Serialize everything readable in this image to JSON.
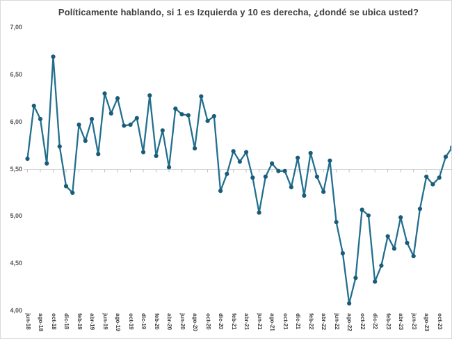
{
  "title": "Políticamente hablando, si 1 es Izquierda y 10 es derecha, ¿dondé se ubica usted?",
  "colors": {
    "line": "#226f8e",
    "marker": "#1a5c78",
    "axis_line": "#d9d9d9",
    "axis_tick": "#c0c0c0",
    "title_text": "#3f3f3f",
    "y_label_text": "#595959",
    "x_label_text": "#404040",
    "background": "#ffffff",
    "border": "#d8d8d8"
  },
  "y_axis": {
    "tick_labels": [
      "7,00",
      "6,50",
      "6,00",
      "5,50",
      "5,00",
      "4,50",
      "4,00"
    ],
    "tick_values": [
      7.0,
      6.5,
      6.0,
      5.5,
      5.0,
      4.5,
      4.0
    ],
    "min": 4.0,
    "max": 7.0,
    "axis_line_at": 5.5
  },
  "x_axis": {
    "tick_labels": [
      "jun-18",
      "ago-18",
      "oct-18",
      "dic-18",
      "feb-19",
      "abr-19",
      "jun-19",
      "ago-19",
      "oct-19",
      "dic-19",
      "feb-20",
      "abr-20",
      "jun-20",
      "ago-20",
      "oct-20",
      "dic-20",
      "feb-21",
      "abr-21",
      "jun-21",
      "ago-21",
      "oct-21",
      "dic-21",
      "feb-22",
      "abr-22",
      "jun-22",
      "ago-22",
      "oct-22",
      "dic-22",
      "feb-23",
      "abr-23",
      "jun-23",
      "ago-23",
      "oct-23"
    ],
    "label_every_n_points": 2,
    "label_rotation_deg": 90
  },
  "chart_data": {
    "type": "line",
    "title": "Políticamente hablando, si 1 es Izquierda y 10 es derecha, ¿dondé se ubica usted?",
    "ylim": [
      4.0,
      7.0
    ],
    "grid": "single light horizontal axis line at 5,50 with small tick marks",
    "legend": "none",
    "marker": "filled-circle",
    "x": [
      "jun-18",
      "jul-18",
      "ago-18",
      "sep-18",
      "oct-18",
      "nov-18",
      "dic-18",
      "ene-19",
      "feb-19",
      "mar-19",
      "abr-19",
      "may-19",
      "jun-19",
      "jul-19",
      "ago-19",
      "sep-19",
      "oct-19",
      "nov-19",
      "dic-19",
      "ene-20",
      "feb-20",
      "mar-20",
      "abr-20",
      "may-20",
      "jun-20",
      "jul-20",
      "ago-20",
      "sep-20",
      "oct-20",
      "nov-20",
      "dic-20",
      "ene-21",
      "feb-21",
      "mar-21",
      "abr-21",
      "may-21",
      "jun-21",
      "jul-21",
      "ago-21",
      "sep-21",
      "oct-21",
      "nov-21",
      "dic-21",
      "ene-22",
      "feb-22",
      "mar-22",
      "abr-22",
      "may-22",
      "jun-22",
      "jul-22",
      "ago-22",
      "sep-22",
      "oct-22",
      "nov-22",
      "dic-22",
      "ene-23",
      "feb-23",
      "mar-23",
      "abr-23",
      "may-23",
      "jun-23",
      "jul-23",
      "ago-23",
      "sep-23",
      "oct-23",
      "nov-23",
      "dic-23"
    ],
    "values": [
      5.61,
      6.17,
      6.03,
      5.56,
      6.69,
      5.74,
      5.32,
      5.25,
      5.97,
      5.8,
      6.03,
      5.66,
      6.3,
      6.09,
      6.25,
      5.96,
      5.97,
      6.04,
      5.68,
      6.28,
      5.64,
      5.91,
      5.52,
      6.14,
      6.08,
      6.07,
      5.72,
      6.27,
      6.01,
      6.06,
      5.27,
      5.45,
      5.69,
      5.58,
      5.68,
      5.41,
      5.04,
      5.42,
      5.56,
      5.48,
      5.48,
      5.31,
      5.62,
      5.22,
      5.67,
      5.42,
      5.26,
      5.59,
      4.94,
      4.61,
      4.08,
      4.35,
      5.07,
      5.01,
      4.31,
      4.48,
      4.79,
      4.66,
      4.99,
      4.72,
      4.58,
      5.08,
      5.42,
      5.34,
      5.41,
      5.63,
      5.73
    ]
  }
}
